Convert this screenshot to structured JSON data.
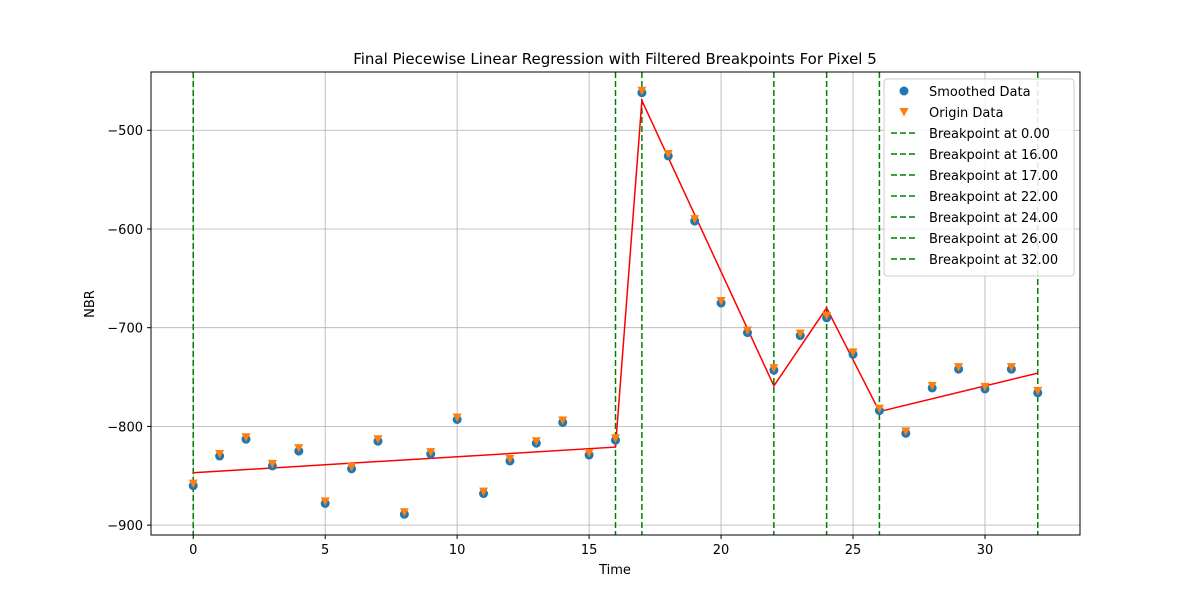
{
  "chart_data": {
    "type": "scatter",
    "title": "Final Piecewise Linear Regression with Filtered Breakpoints For Pixel 5",
    "xlabel": "Time",
    "ylabel": "NBR",
    "xlim": [
      -1.6,
      33.6
    ],
    "ylim": [
      -910,
      -441
    ],
    "xticks": [
      0,
      5,
      10,
      15,
      20,
      25,
      30
    ],
    "yticks": [
      -900,
      -800,
      -700,
      -600,
      -500
    ],
    "grid": true,
    "legend_position": "top-right",
    "colors": {
      "smoothed": "#1f77b4",
      "origin": "#ff7f0e",
      "fit": "#ff0000",
      "breakpoint": "#008000"
    },
    "series": [
      {
        "name": "Smoothed Data",
        "kind": "scatter-circle",
        "x": [
          0,
          1,
          2,
          3,
          4,
          5,
          6,
          7,
          8,
          9,
          10,
          11,
          12,
          13,
          14,
          15,
          16,
          17,
          18,
          19,
          20,
          21,
          22,
          23,
          24,
          25,
          26,
          27,
          28,
          29,
          30,
          31,
          32
        ],
        "y": [
          -860,
          -830,
          -813,
          -840,
          -825,
          -878,
          -843,
          -815,
          -889,
          -828,
          -793,
          -868,
          -835,
          -817,
          -796,
          -829,
          -814,
          -462,
          -526,
          -592,
          -675,
          -705,
          -743,
          -708,
          -690,
          -727,
          -784,
          -807,
          -761,
          -742,
          -762,
          -742,
          -766
        ]
      },
      {
        "name": "Origin Data",
        "kind": "scatter-triangle",
        "x": [
          0,
          1,
          2,
          3,
          4,
          5,
          6,
          7,
          8,
          9,
          10,
          11,
          12,
          13,
          14,
          15,
          16,
          17,
          18,
          19,
          20,
          21,
          22,
          23,
          24,
          25,
          26,
          27,
          28,
          29,
          30,
          31,
          32
        ],
        "y": [
          -858,
          -828,
          -811,
          -838,
          -822,
          -876,
          -841,
          -813,
          -887,
          -826,
          -791,
          -866,
          -833,
          -815,
          -794,
          -827,
          -812,
          -460,
          -524,
          -590,
          -673,
          -703,
          -741,
          -706,
          -688,
          -725,
          -782,
          -805,
          -759,
          -740,
          -760,
          -740,
          -764
        ]
      }
    ],
    "fit_line": {
      "x": [
        0,
        16,
        17,
        22,
        24,
        26,
        32
      ],
      "y": [
        -847,
        -821,
        -470,
        -759,
        -680,
        -785,
        -746
      ]
    },
    "breakpoints": [
      {
        "value": 0,
        "label": "Breakpoint at 0.00"
      },
      {
        "value": 16,
        "label": "Breakpoint at 16.00"
      },
      {
        "value": 17,
        "label": "Breakpoint at 17.00"
      },
      {
        "value": 22,
        "label": "Breakpoint at 22.00"
      },
      {
        "value": 24,
        "label": "Breakpoint at 24.00"
      },
      {
        "value": 26,
        "label": "Breakpoint at 26.00"
      },
      {
        "value": 32,
        "label": "Breakpoint at 32.00"
      }
    ],
    "tick_labels": {
      "x": [
        "0",
        "5",
        "10",
        "15",
        "20",
        "25",
        "30"
      ],
      "y": [
        "−900",
        "−800",
        "−700",
        "−600",
        "−500"
      ]
    }
  }
}
